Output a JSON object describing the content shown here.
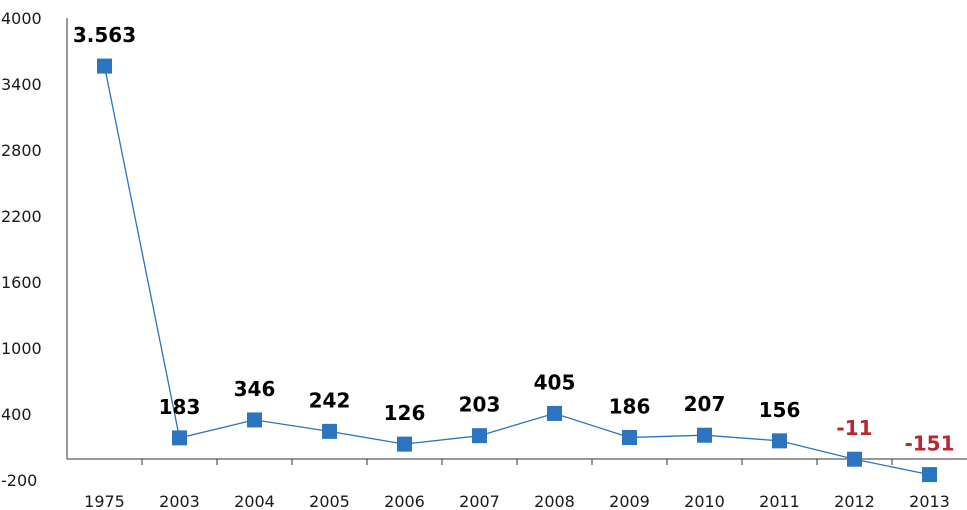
{
  "chart_data": {
    "type": "line",
    "title": "",
    "xlabel": "",
    "ylabel": "",
    "categories": [
      "1975",
      "2003",
      "2004",
      "2005",
      "2006",
      "2007",
      "2008",
      "2009",
      "2010",
      "2011",
      "2012",
      "2013"
    ],
    "series": [
      {
        "values": [
          3563,
          183,
          346,
          242,
          126,
          203,
          405,
          186,
          207,
          156,
          -11,
          -151
        ],
        "data_labels": [
          "3.563",
          "183",
          "346",
          "242",
          "126",
          "203",
          "405",
          "186",
          "207",
          "156",
          "-11",
          "-151"
        ]
      }
    ],
    "ylim": [
      -200,
      4000
    ],
    "yticks": [
      "4000",
      "3400",
      "2800",
      "2200",
      "1600",
      "1000",
      "400",
      "-200"
    ],
    "grid": false,
    "legend": "none",
    "colors": {
      "line": "#2a74c0",
      "marker": "#2a74c0",
      "positive_label": "#000000",
      "negative_label": "#b8262f"
    }
  }
}
